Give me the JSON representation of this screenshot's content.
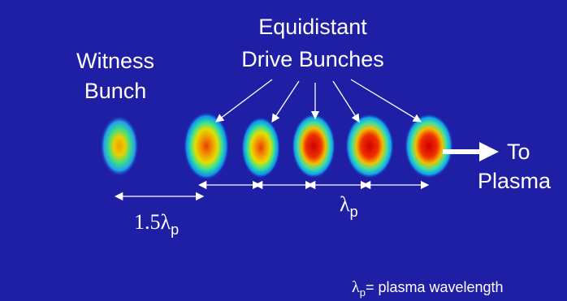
{
  "title": {
    "line1": "Equidistant",
    "line2": "Drive Bunches"
  },
  "witness": {
    "line1": "Witness",
    "line2": "Bunch"
  },
  "destination": {
    "line1": "To",
    "line2": "Plasma"
  },
  "spacing_label": {
    "text": "1.5λ",
    "subscript": "p"
  },
  "period_label": {
    "text": "λ",
    "subscript": "p"
  },
  "legend": {
    "symbol": "λ",
    "subscript": "p",
    "text": "= plasma wavelength"
  }
}
